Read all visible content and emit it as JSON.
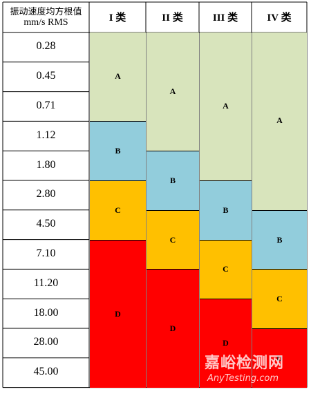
{
  "header": {
    "row_title_line1": "振动速度均方根值",
    "row_title_line2": "mm/s RMS",
    "classes": [
      "I 类",
      "II 类",
      "III 类",
      "IV 类"
    ]
  },
  "rows": [
    "0.28",
    "0.45",
    "0.71",
    "1.12",
    "1.80",
    "2.80",
    "4.50",
    "7.10",
    "11.20",
    "18.00",
    "28.00",
    "45.00"
  ],
  "zones": [
    [
      {
        "label": "A",
        "from": 0,
        "to": 2
      },
      {
        "label": "B",
        "from": 3,
        "to": 4
      },
      {
        "label": "C",
        "from": 5,
        "to": 6
      },
      {
        "label": "D",
        "from": 7,
        "to": 11
      }
    ],
    [
      {
        "label": "A",
        "from": 0,
        "to": 3
      },
      {
        "label": "B",
        "from": 4,
        "to": 5
      },
      {
        "label": "C",
        "from": 6,
        "to": 7
      },
      {
        "label": "D",
        "from": 8,
        "to": 11
      }
    ],
    [
      {
        "label": "A",
        "from": 0,
        "to": 4
      },
      {
        "label": "B",
        "from": 5,
        "to": 6
      },
      {
        "label": "C",
        "from": 7,
        "to": 8
      },
      {
        "label": "D",
        "from": 9,
        "to": 11
      }
    ],
    [
      {
        "label": "A",
        "from": 0,
        "to": 5
      },
      {
        "label": "B",
        "from": 6,
        "to": 7
      },
      {
        "label": "C",
        "from": 8,
        "to": 9
      },
      {
        "label": "D",
        "from": 10,
        "to": 11
      }
    ]
  ],
  "zone_colors": {
    "A": "#d8e4bc",
    "B": "#92cddc",
    "C": "#ffc000",
    "D": "#ff0000"
  },
  "watermark": {
    "cn": "嘉峪检测网",
    "en": "AnyTesting.com"
  }
}
